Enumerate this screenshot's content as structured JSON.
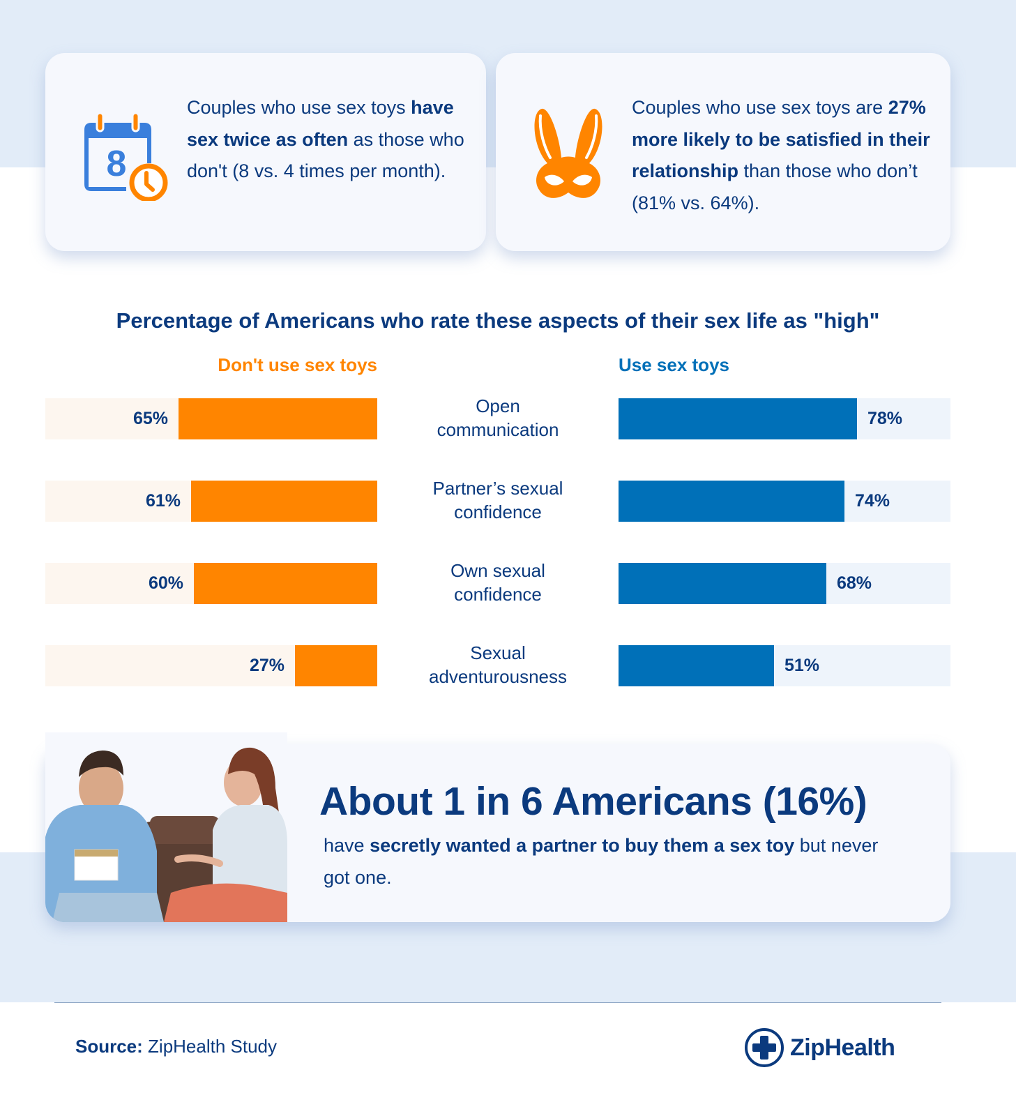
{
  "stat_cards": [
    {
      "icon": "calendar-clock-icon",
      "icon_number": "8",
      "text_before": "Couples who use sex toys ",
      "text_bold": "have sex twice as often",
      "text_after": " as those who don't (8 vs. 4 times per month)."
    },
    {
      "icon": "bunny-mask-icon",
      "text_before": "Couples who use sex toys are ",
      "text_bold": "27% more likely to be satisfied in their relationship",
      "text_after": " than those who don’t (81% vs. 64%)."
    }
  ],
  "chart_data": {
    "type": "bar",
    "orientation": "horizontal-diverging",
    "title": "Percentage of Americans who rate these aspects of their sex life as \"high\"",
    "categories": [
      "Open communication",
      "Partner’s sexual confidence",
      "Own sexual confidence",
      "Sexual adventurousness"
    ],
    "series": [
      {
        "name": "Don't use sex toys",
        "color": "#ff8500",
        "values": [
          65,
          61,
          60,
          27
        ],
        "labels": [
          "65%",
          "61%",
          "60%",
          "27%"
        ]
      },
      {
        "name": "Use sex toys",
        "color": "#0070b8",
        "values": [
          78,
          74,
          68,
          51
        ],
        "labels": [
          "78%",
          "74%",
          "68%",
          "51%"
        ]
      }
    ],
    "unit": "%",
    "xlim": [
      0,
      100
    ],
    "grid": false,
    "legend_position": "top"
  },
  "chart_rows": [
    {
      "cat_line1": "Open",
      "cat_line2": "communication"
    },
    {
      "cat_line1": "Partner’s sexual",
      "cat_line2": "confidence"
    },
    {
      "cat_line1": "Own sexual",
      "cat_line2": "confidence"
    },
    {
      "cat_line1": "Sexual",
      "cat_line2": "adventurousness"
    }
  ],
  "feature": {
    "headline": "About 1 in 6 Americans (16%)",
    "body_before": "have ",
    "body_bold": "secretly wanted a partner to buy them a sex toy",
    "body_after": " but never got one.",
    "photo": "couple-on-couch-photo"
  },
  "footer": {
    "source_label": "Source:",
    "source_value": " ZipHealth Study",
    "brand": "ZipHealth"
  },
  "colors": {
    "navy": "#0b3a7e",
    "orange": "#ff8500",
    "blue": "#0070b8",
    "bg_light_blue": "#e2ecf8",
    "card": "#f6f8fd"
  }
}
